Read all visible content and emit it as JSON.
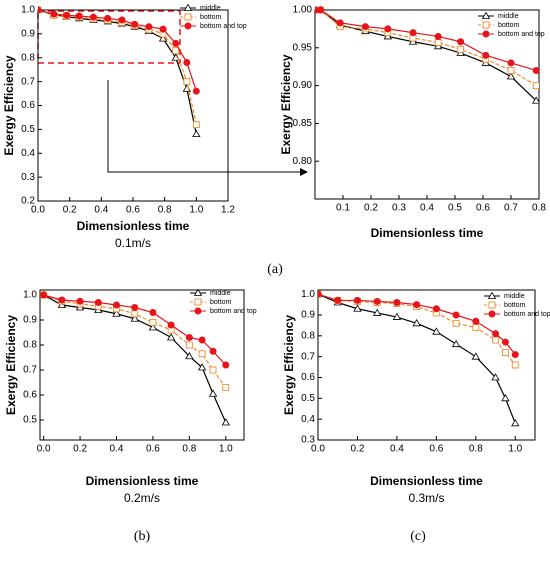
{
  "chart_data": [
    {
      "type": "line",
      "x_label": "Dimensionless time",
      "y_label": "Exergy Efficiency",
      "subtitle": "0.1m/s",
      "legend": "upper right",
      "x": [
        0,
        0.1,
        0.18,
        0.26,
        0.35,
        0.44,
        0.53,
        0.61,
        0.7,
        0.79,
        0.87,
        0.94,
        1.0
      ],
      "xlim": [
        0,
        1.2
      ],
      "ylim": [
        0.2,
        1.0
      ],
      "xticks": [
        {
          "value": 0,
          "label": "0.0"
        },
        0.2,
        0.4,
        0.6,
        0.8,
        {
          "value": 1,
          "label": "1.0"
        },
        1.2
      ],
      "yticks": [
        0.2,
        0.3,
        0.4,
        0.5,
        0.6,
        0.7,
        0.8,
        0.9,
        {
          "value": 1,
          "label": "1.0"
        }
      ],
      "series": [
        {
          "name": "middle",
          "color": "#000000",
          "marker": "triangle",
          "linestyle": "solid",
          "values": [
            1.0,
            0.98,
            0.972,
            0.965,
            0.958,
            0.952,
            0.943,
            0.93,
            0.912,
            0.88,
            0.8,
            0.67,
            0.48
          ]
        },
        {
          "name": "bottom",
          "color": "#f28c28",
          "marker": "square",
          "linestyle": "dashed",
          "values": [
            1.0,
            0.978,
            0.975,
            0.97,
            0.963,
            0.957,
            0.948,
            0.935,
            0.92,
            0.9,
            0.83,
            0.7,
            0.52
          ]
        },
        {
          "name": "bottom and top",
          "color": "#e8141c",
          "marker": "circle",
          "linestyle": "solid",
          "values": [
            1.0,
            0.983,
            0.978,
            0.975,
            0.97,
            0.965,
            0.958,
            0.94,
            0.93,
            0.92,
            0.86,
            0.78,
            0.66
          ]
        }
      ]
    },
    {
      "type": "line",
      "x_label": "Dimensionless time",
      "y_label": "Exergy Efficiency",
      "legend": "upper right",
      "x": [
        0,
        0.02,
        0.09,
        0.18,
        0.26,
        0.35,
        0.44,
        0.52,
        0.61,
        0.7,
        0.79
      ],
      "xlim": [
        0,
        0.8
      ],
      "ylim": [
        0.75,
        1.0
      ],
      "xticks": [
        0.1,
        0.2,
        0.3,
        0.4,
        0.5,
        0.6,
        0.7,
        0.8
      ],
      "yticks": [
        {
          "value": 0.8,
          "label": "0.80"
        },
        0.85,
        {
          "value": 0.9,
          "label": "0.90"
        },
        0.95,
        {
          "value": 1,
          "label": "1.00"
        }
      ],
      "series": [
        {
          "name": "middle",
          "color": "#000000",
          "marker": "triangle",
          "linestyle": "solid",
          "values": [
            1.0,
            1.0,
            0.98,
            0.972,
            0.965,
            0.958,
            0.952,
            0.943,
            0.93,
            0.912,
            0.88
          ]
        },
        {
          "name": "bottom",
          "color": "#f28c28",
          "marker": "square",
          "linestyle": "dashed",
          "values": [
            1.0,
            1.0,
            0.978,
            0.975,
            0.97,
            0.963,
            0.957,
            0.948,
            0.935,
            0.92,
            0.9
          ]
        },
        {
          "name": "bottom and top",
          "color": "#e8141c",
          "marker": "circle",
          "linestyle": "solid",
          "values": [
            1.0,
            1.0,
            0.983,
            0.978,
            0.975,
            0.97,
            0.965,
            0.958,
            0.94,
            0.93,
            0.92
          ]
        }
      ]
    },
    {
      "type": "line",
      "x_label": "Dimensionless time",
      "y_label": "Exergy Efficiency",
      "subtitle": "0.2m/s",
      "legend": "upper right",
      "x": [
        0,
        0.1,
        0.2,
        0.3,
        0.4,
        0.5,
        0.6,
        0.7,
        0.8,
        0.87,
        0.93,
        1.0
      ],
      "xlim": [
        -0.02,
        1.1
      ],
      "ylim": [
        0.42,
        1.02
      ],
      "xticks": [
        {
          "value": 0,
          "label": "0.0"
        },
        0.2,
        0.4,
        0.6,
        0.8,
        {
          "value": 1,
          "label": "1.0"
        }
      ],
      "yticks": [
        0.5,
        0.6,
        0.7,
        0.8,
        0.9,
        {
          "value": 1,
          "label": "1.0"
        }
      ],
      "series": [
        {
          "name": "middle",
          "color": "#000000",
          "marker": "triangle",
          "linestyle": "solid",
          "values": [
            1.0,
            0.96,
            0.95,
            0.94,
            0.925,
            0.905,
            0.87,
            0.83,
            0.755,
            0.71,
            0.605,
            0.49
          ]
        },
        {
          "name": "bottom",
          "color": "#f28c28",
          "marker": "square",
          "linestyle": "dashed",
          "values": [
            1.0,
            0.975,
            0.965,
            0.955,
            0.945,
            0.925,
            0.89,
            0.86,
            0.8,
            0.765,
            0.7,
            0.63
          ]
        },
        {
          "name": "bottom and top",
          "color": "#e8141c",
          "marker": "circle",
          "linestyle": "solid",
          "values": [
            1.0,
            0.98,
            0.975,
            0.97,
            0.96,
            0.95,
            0.93,
            0.88,
            0.83,
            0.82,
            0.775,
            0.72
          ]
        }
      ]
    },
    {
      "type": "line",
      "x_label": "Dimensionless time",
      "y_label": "Exergy Efficiency",
      "subtitle": "0.3m/s",
      "legend": "upper right",
      "x": [
        0,
        0.1,
        0.2,
        0.3,
        0.4,
        0.5,
        0.6,
        0.7,
        0.8,
        0.9,
        0.95,
        1.0
      ],
      "xlim": [
        0,
        1.1
      ],
      "ylim": [
        0.3,
        1.02
      ],
      "xticks": [
        {
          "value": 0,
          "label": "0.0"
        },
        0.2,
        0.4,
        0.6,
        0.8,
        {
          "value": 1,
          "label": "1.0"
        }
      ],
      "yticks": [
        0.3,
        0.4,
        0.5,
        0.6,
        0.7,
        0.8,
        0.9,
        {
          "value": 1,
          "label": "1.0"
        }
      ],
      "series": [
        {
          "name": "middle",
          "color": "#000000",
          "marker": "triangle",
          "linestyle": "solid",
          "values": [
            1.0,
            0.96,
            0.93,
            0.91,
            0.89,
            0.86,
            0.82,
            0.76,
            0.7,
            0.6,
            0.5,
            0.38
          ]
        },
        {
          "name": "bottom",
          "color": "#f28c28",
          "marker": "square",
          "linestyle": "dashed",
          "values": [
            1.0,
            0.97,
            0.965,
            0.96,
            0.955,
            0.94,
            0.91,
            0.86,
            0.84,
            0.78,
            0.72,
            0.66
          ]
        },
        {
          "name": "bottom and top",
          "color": "#e8141c",
          "marker": "circle",
          "linestyle": "solid",
          "values": [
            1.0,
            0.97,
            0.97,
            0.965,
            0.96,
            0.95,
            0.93,
            0.9,
            0.87,
            0.81,
            0.77,
            0.71
          ]
        }
      ]
    }
  ],
  "panel_labels": [
    "(a)",
    "(b)",
    "(c)"
  ]
}
